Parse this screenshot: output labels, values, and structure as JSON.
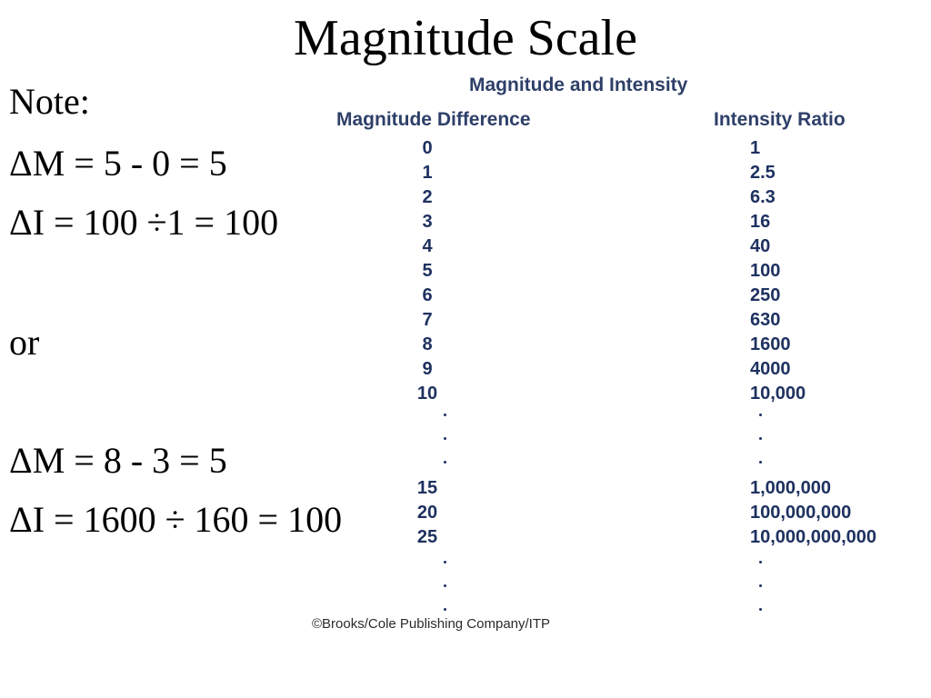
{
  "slide": {
    "title": "Magnitude Scale"
  },
  "notes": [
    "Note:",
    "ΔM = 5 - 0 = 5",
    "ΔI = 100 ÷1 = 100",
    "or",
    "ΔM = 8 - 3 = 5",
    "ΔI = 1600 ÷ 160 = 100"
  ],
  "figure": {
    "title": "Magnitude and Intensity",
    "col_left_header": "Magnitude Difference",
    "col_right_header": "Intensity Ratio",
    "rows_top": [
      {
        "magnitude": "0",
        "ratio": "1"
      },
      {
        "magnitude": "1",
        "ratio": "2.5"
      },
      {
        "magnitude": "2",
        "ratio": "6.3"
      },
      {
        "magnitude": "3",
        "ratio": "16"
      },
      {
        "magnitude": "4",
        "ratio": "40"
      },
      {
        "magnitude": "5",
        "ratio": "100"
      },
      {
        "magnitude": "6",
        "ratio": "250"
      },
      {
        "magnitude": "7",
        "ratio": "630"
      },
      {
        "magnitude": "8",
        "ratio": "1600"
      },
      {
        "magnitude": "9",
        "ratio": "4000"
      },
      {
        "magnitude": "10",
        "ratio": "10,000"
      }
    ],
    "rows_bottom": [
      {
        "magnitude": "15",
        "ratio": "1,000,000"
      },
      {
        "magnitude": "20",
        "ratio": "100,000,000"
      },
      {
        "magnitude": "25",
        "ratio": "10,000,000,000"
      }
    ],
    "credit": "©Brooks/Cole Publishing Company/ITP"
  }
}
